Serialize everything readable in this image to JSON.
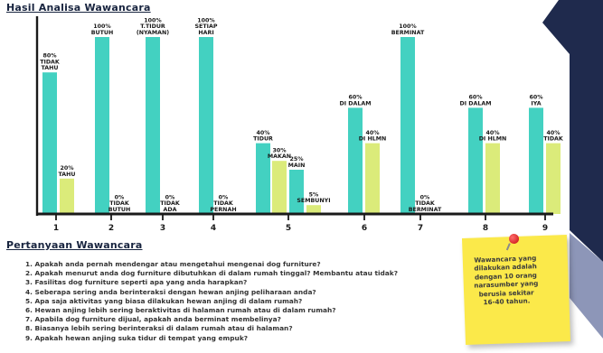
{
  "title": "Hasil Analisa Wawancara",
  "questions_title": "Pertanyaan Wawancara",
  "questions": [
    "1. Apakah anda pernah mendengar atau mengetahui mengenai dog furniture?",
    "2. Apakah menurut anda dog furniture dibutuhkan di dalam rumah tinggal? Membantu atau tidak?",
    "3. Fasilitas dog furniture seperti apa yang anda harapkan?",
    "4. Seberapa sering anda berinteraksi dengan hewan anjing peliharaan anda?",
    "5. Apa saja aktivitas yang biasa dilakukan hewan anjing di dalam rumah?",
    "6. Hewan anjing lebih sering beraktivitas di halaman rumah atau di dalam rumah?",
    "7. Apabila dog furniture dijual, apakah anda berminat membelinya?",
    "8. Biasanya lebih sering berinteraksi di dalam rumah atau di halaman?",
    "9. Apakah hewan anjing suka tidur di tempat yang empuk?"
  ],
  "note": "Wawancara yang dilakukan adalah dengan 10 orang narasumber yang berusia sekitar 16-40 tahun.",
  "colors": {
    "teal": "#43d1c1",
    "lime": "#dbeb7a",
    "axis": "#1a1a1a",
    "heading": "#18243f",
    "corner_navy": "#1f2a4d",
    "corner_slate": "#8d96b8",
    "note": "#fbe94a",
    "pin": "#d41818"
  },
  "chart_data": {
    "type": "bar",
    "title": "Hasil Analisa Wawancara",
    "ylim": [
      0,
      100
    ],
    "grid": false,
    "legend": "none",
    "categories": [
      "1",
      "2",
      "3",
      "4",
      "5",
      "6",
      "7",
      "8",
      "9"
    ],
    "groups": [
      {
        "category": "1",
        "bars": [
          {
            "value": 80,
            "label": "80%\nTIDAK\nTAHU",
            "color": "teal"
          },
          {
            "value": 20,
            "label": "20%\nTAHU",
            "color": "lime"
          }
        ]
      },
      {
        "category": "2",
        "bars": [
          {
            "value": 100,
            "label": "100%\nBUTUH",
            "color": "teal"
          },
          {
            "value": 0,
            "label": "0%\nTIDAK\nBUTUH",
            "color": "lime"
          }
        ]
      },
      {
        "category": "3",
        "bars": [
          {
            "value": 100,
            "label": "100%\nT.TIDUR\n(NYAMAN)",
            "color": "teal"
          },
          {
            "value": 0,
            "label": "0%\nTIDAK\nADA",
            "color": "lime"
          }
        ]
      },
      {
        "category": "4",
        "bars": [
          {
            "value": 100,
            "label": "100%\nSETIAP\nHARI",
            "color": "teal"
          },
          {
            "value": 0,
            "label": "0%\nTIDAK\nPERNAH",
            "color": "lime"
          }
        ]
      },
      {
        "category": "5",
        "bars": [
          {
            "value": 40,
            "label": "40%\nTIDUR",
            "color": "teal"
          },
          {
            "value": 30,
            "label": "30%\nMAKAN",
            "color": "lime"
          },
          {
            "value": 25,
            "label": "25%\nMAIN",
            "color": "teal"
          },
          {
            "value": 5,
            "label": "5%\nSEMBUNYI",
            "color": "lime"
          }
        ]
      },
      {
        "category": "6",
        "bars": [
          {
            "value": 60,
            "label": "60%\nDI DALAM",
            "color": "teal"
          },
          {
            "value": 40,
            "label": "40%\nDI HLMN",
            "color": "lime"
          }
        ]
      },
      {
        "category": "7",
        "bars": [
          {
            "value": 100,
            "label": "100%\nBERMINAT",
            "color": "teal"
          },
          {
            "value": 0,
            "label": "0%\nTIDAK\nBERMINAT",
            "color": "lime"
          }
        ]
      },
      {
        "category": "8",
        "bars": [
          {
            "value": 60,
            "label": "60%\nDI DALAM",
            "color": "teal"
          },
          {
            "value": 40,
            "label": "40%\nDI HLMN",
            "color": "lime"
          }
        ]
      },
      {
        "category": "9",
        "bars": [
          {
            "value": 60,
            "label": "60%\nIYA",
            "color": "teal"
          },
          {
            "value": 40,
            "label": "40%\nTIDAK",
            "color": "lime"
          }
        ]
      }
    ]
  }
}
